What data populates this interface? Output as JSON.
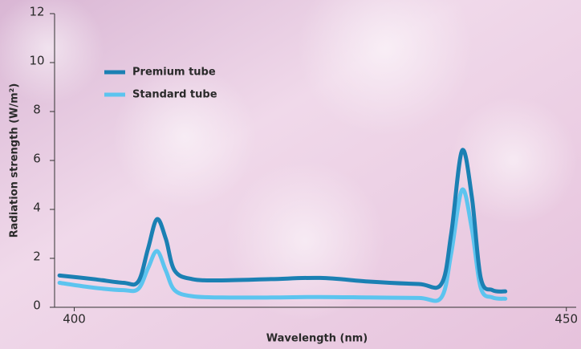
{
  "chart_data": {
    "type": "line",
    "x_label": "Wavelength (nm)",
    "y_label": "Radiation strength (W/m²)",
    "x": [
      398.5,
      402,
      405,
      406.5,
      407.5,
      408.4,
      409.3,
      410.2,
      412,
      415,
      420,
      425,
      430,
      435,
      437.3,
      438.3,
      439.4,
      440.4,
      441.3,
      442.5,
      443.8
    ],
    "series": [
      {
        "name": "Premium tube",
        "color": "#1b80b3",
        "values": [
          1.3,
          1.15,
          1.0,
          1.05,
          2.4,
          3.6,
          2.8,
          1.5,
          1.15,
          1.1,
          1.15,
          1.2,
          1.05,
          0.95,
          0.95,
          3.0,
          6.4,
          4.5,
          1.2,
          0.7,
          0.65
        ]
      },
      {
        "name": "Standard tube",
        "color": "#5cc4ef",
        "values": [
          1.0,
          0.8,
          0.7,
          0.75,
          1.6,
          2.3,
          1.5,
          0.7,
          0.45,
          0.4,
          0.4,
          0.42,
          0.4,
          0.38,
          0.4,
          2.2,
          4.8,
          3.2,
          0.8,
          0.4,
          0.35
        ]
      }
    ],
    "xlim": [
      398,
      451
    ],
    "xticks": [
      400,
      450
    ],
    "ylim": [
      0,
      12
    ],
    "yticks": [
      0,
      2,
      4,
      6,
      8,
      10,
      12
    ],
    "legend": "upper-left"
  }
}
